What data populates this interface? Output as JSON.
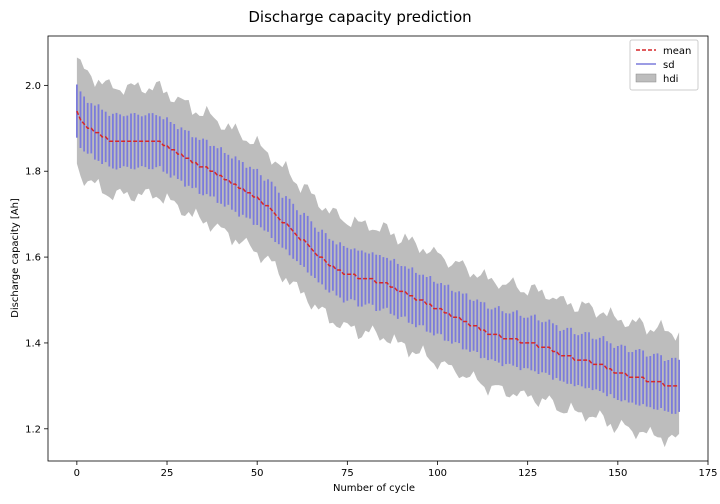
{
  "chart_data": {
    "type": "line",
    "title": "Discharge capacity prediction",
    "xlabel": "Number of cycle",
    "ylabel": "Discharge capacity [Ah]",
    "xlim": [
      -8,
      175
    ],
    "ylim": [
      1.125,
      2.115
    ],
    "x_ticks": [
      0,
      25,
      50,
      75,
      100,
      125,
      150,
      175
    ],
    "y_ticks": [
      1.2,
      1.4,
      1.6,
      1.8,
      2.0
    ],
    "y_tick_labels": [
      "1.2",
      "1.4",
      "1.6",
      "1.8",
      "2.0"
    ],
    "legend_position": "top-right",
    "legend": [
      {
        "label": "mean",
        "style": "dashed-line",
        "color": "#d62728"
      },
      {
        "label": "sd",
        "style": "line",
        "color": "#7b7bdc"
      },
      {
        "label": "hdi",
        "style": "patch",
        "color": "#bdbdbd"
      }
    ],
    "colors": {
      "mean": "#d62728",
      "sd": "#7b7bdc",
      "hdi": "#bdbdbd"
    },
    "mean_anchors": [
      [
        0,
        1.94
      ],
      [
        2,
        1.91
      ],
      [
        5,
        1.89
      ],
      [
        10,
        1.87
      ],
      [
        22,
        1.87
      ],
      [
        30,
        1.83
      ],
      [
        35,
        1.81
      ],
      [
        40,
        1.79
      ],
      [
        45,
        1.76
      ],
      [
        50,
        1.74
      ],
      [
        55,
        1.7
      ],
      [
        60,
        1.66
      ],
      [
        65,
        1.62
      ],
      [
        70,
        1.58
      ],
      [
        75,
        1.56
      ],
      [
        80,
        1.55
      ],
      [
        85,
        1.54
      ],
      [
        90,
        1.52
      ],
      [
        95,
        1.5
      ],
      [
        100,
        1.48
      ],
      [
        105,
        1.46
      ],
      [
        110,
        1.44
      ],
      [
        115,
        1.42
      ],
      [
        120,
        1.41
      ],
      [
        125,
        1.4
      ],
      [
        130,
        1.39
      ],
      [
        135,
        1.37
      ],
      [
        140,
        1.36
      ],
      [
        145,
        1.35
      ],
      [
        150,
        1.33
      ],
      [
        155,
        1.32
      ],
      [
        160,
        1.31
      ],
      [
        165,
        1.3
      ],
      [
        167,
        1.3
      ]
    ],
    "sd_half_width": 0.062,
    "hdi_half_width": 0.125,
    "n_points": 168
  }
}
